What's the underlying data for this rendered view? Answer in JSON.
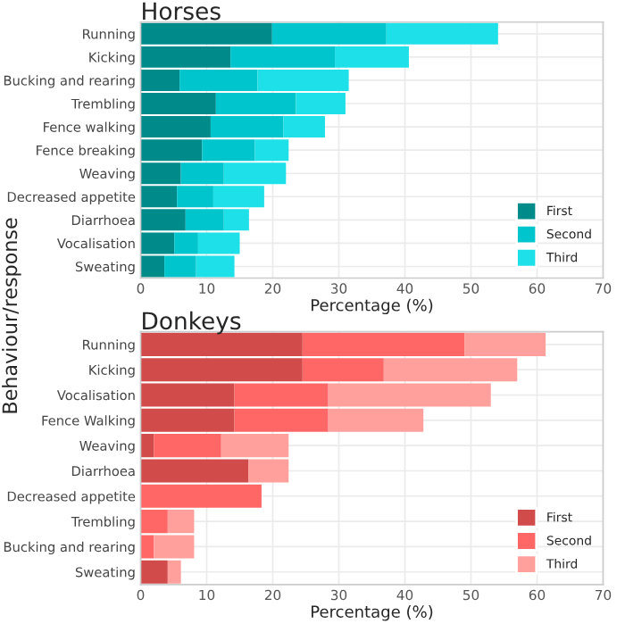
{
  "chart_data": [
    {
      "type": "bar",
      "orientation": "horizontal",
      "stacked": true,
      "title": "Horses",
      "xlabel": "Percentage (%)",
      "ylabel": "Behaviour/response",
      "categories": [
        "Running",
        "Kicking",
        "Bucking and rearing",
        "Trembling",
        "Fence walking",
        "Fence breaking",
        "Weaving",
        "Decreased appetite",
        "Diarrhoea",
        "Vocalisation",
        "Sweating"
      ],
      "series": [
        {
          "name": "First",
          "color": "#008b8b",
          "values": [
            19.9,
            13.6,
            5.9,
            11.4,
            10.6,
            9.3,
            6.1,
            5.5,
            6.8,
            5.1,
            3.6
          ]
        },
        {
          "name": "Second",
          "color": "#00c5cd",
          "values": [
            17.3,
            15.8,
            11.8,
            12.1,
            11.0,
            8.0,
            6.5,
            5.5,
            5.8,
            3.6,
            4.8
          ]
        },
        {
          "name": "Third",
          "color": "#1ee0e8",
          "values": [
            16.9,
            11.2,
            13.8,
            7.5,
            6.3,
            5.1,
            9.4,
            7.7,
            3.8,
            6.3,
            5.8
          ]
        }
      ],
      "xlim": [
        0,
        70
      ],
      "xticks": [
        0,
        10,
        20,
        30,
        40,
        50,
        60,
        70
      ],
      "grid": true,
      "legend": "bottom right"
    },
    {
      "type": "bar",
      "orientation": "horizontal",
      "stacked": true,
      "title": "Donkeys",
      "xlabel": "Percentage (%)",
      "categories": [
        "Running",
        "Kicking",
        "Vocalisation",
        "Fence Walking",
        "Weaving",
        "Diarrhoea",
        "Decreased appetite",
        "Trembling",
        "Bucking and rearing",
        "Sweating"
      ],
      "series": [
        {
          "name": "First",
          "color": "#d24b4b",
          "values": [
            24.5,
            24.5,
            14.2,
            14.2,
            2.0,
            16.3,
            0,
            0,
            0,
            4.1
          ]
        },
        {
          "name": "Second",
          "color": "#ff6666",
          "values": [
            24.5,
            12.3,
            14.2,
            14.2,
            10.2,
            0,
            18.3,
            4.1,
            2.0,
            0
          ]
        },
        {
          "name": "Third",
          "color": "#ffa09c",
          "values": [
            12.3,
            20.2,
            24.6,
            14.4,
            10.2,
            6.1,
            0,
            4.0,
            6.1,
            2.0
          ]
        }
      ],
      "xlim": [
        0,
        70
      ],
      "xticks": [
        0,
        10,
        20,
        30,
        40,
        50,
        60,
        70
      ],
      "grid": true,
      "legend": "bottom right"
    }
  ]
}
